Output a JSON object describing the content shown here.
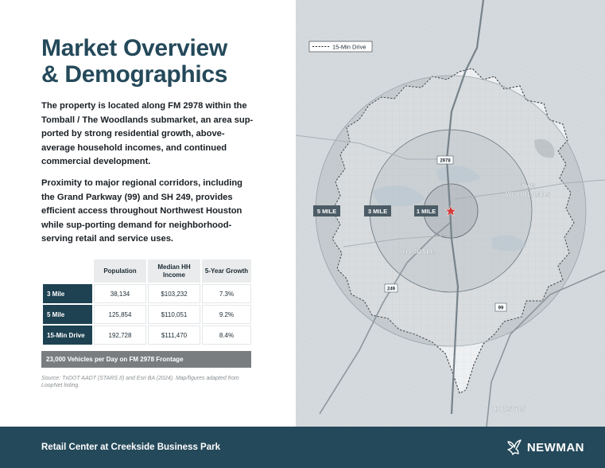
{
  "title": {
    "line1": "Market Overview",
    "line2": "& Demographics"
  },
  "paragraphs": [
    "The property is located along FM 2978 within the Tomball / The Woodlands submarket, an area sup-ported by strong residential growth, above-average household incomes, and continued commercial development.",
    "Proximity to major regional corridors, including the Grand Parkway (99) and SH 249, provides efficient access throughout Northwest Houston while sup-porting demand for neighborhood-serving retail and service uses."
  ],
  "table": {
    "headers": [
      "Population",
      "Median HH Income",
      "5-Year Growth"
    ],
    "rows": [
      {
        "label": "3 Mile",
        "population": "38,134",
        "income": "$103,232",
        "growth": "7.3%"
      },
      {
        "label": "5 Mile",
        "population": "125,854",
        "income": "$110,051",
        "growth": "9.2%"
      },
      {
        "label": "15-Min Drive",
        "population": "192,728",
        "income": "$111,470",
        "growth": "8.4%"
      }
    ],
    "traffic_note": "23,000 Vehicles per Day on FM 2978 Frontage"
  },
  "source": "Source: TxDOT AADT (STARS II) and Esri BA (2024). Map/figures adapted from LoopNet listing.",
  "map": {
    "legend": "15-Min Drive",
    "ring_labels": {
      "five": "5 MILE",
      "three": "3 MILE",
      "one": "1 MILE"
    },
    "places": {
      "woodlands_1": "THE",
      "woodlands_2": "WOODLANDS",
      "tomball": "TOMBALL",
      "houston": "HOUSTON"
    },
    "road_shields": {
      "fm2978": "2978",
      "sh249": "249",
      "sh99": "99"
    },
    "colors": {
      "ring_fill": "#8b949b",
      "marker": "#d63a3a",
      "label_bg": "#4b5c66"
    }
  },
  "footer": {
    "project": "Retail Center at Creekside Business Park",
    "brand": "NEWMAN"
  }
}
